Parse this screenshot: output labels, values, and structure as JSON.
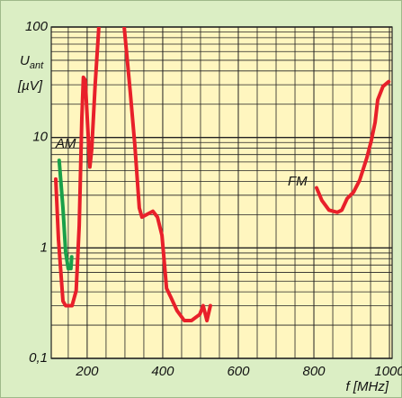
{
  "chart_data": {
    "type": "line",
    "ylabel": "U",
    "ylabel_sub": "ant",
    "yunit": "[µV]",
    "xlabel": "f [MHz]",
    "annotations": [
      "AM",
      "FM"
    ],
    "log_y": true,
    "grid": true,
    "xlim": [
      105,
      1007
    ],
    "ylim": [
      0.1,
      100
    ],
    "xticks": [
      200,
      400,
      600,
      800,
      1000
    ],
    "xminorticks": [
      150,
      250,
      300,
      350,
      450,
      500,
      550,
      650,
      700,
      750,
      850,
      900,
      950
    ],
    "yticks": [
      {
        "value": 0.1,
        "label": "0,1"
      },
      1,
      10,
      100
    ],
    "yminorticks": [
      0.2,
      0.3,
      0.4,
      0.5,
      0.6,
      0.7,
      0.8,
      0.9,
      2,
      3,
      4,
      5,
      6,
      7,
      8,
      9,
      20,
      30,
      40,
      50,
      60,
      70,
      80,
      90
    ],
    "series": [
      {
        "color": "#e8202a",
        "x": [
          117,
          124,
          136,
          143,
          160,
          171,
          179,
          186,
          190,
          195,
          207,
          212,
          221,
          231
        ],
        "values": [
          4.2,
          1.2,
          0.33,
          0.3,
          0.3,
          0.41,
          1.6,
          15,
          35,
          33,
          5.4,
          7.8,
          29,
          100
        ]
      },
      {
        "color": "#e8202a",
        "x": [
          298,
          314,
          326,
          338,
          345,
          357,
          374,
          386,
          398,
          410,
          421,
          438,
          457,
          476,
          498,
          507,
          517,
          526
        ],
        "values": [
          100,
          26,
          8.6,
          2.3,
          1.9,
          2.0,
          2.15,
          1.9,
          1.3,
          0.43,
          0.36,
          0.27,
          0.22,
          0.22,
          0.25,
          0.3,
          0.22,
          0.3
        ]
      },
      {
        "color": "#e8202a",
        "x": [
          807,
          821,
          840,
          862,
          874,
          888,
          905,
          921,
          940,
          952,
          962,
          969,
          983,
          998
        ],
        "values": [
          3.5,
          2.7,
          2.2,
          2.1,
          2.2,
          2.8,
          3.2,
          4.1,
          6.5,
          9.4,
          13.7,
          21.9,
          29,
          32
        ]
      },
      {
        "color": "#1aa04a",
        "x": [
          126,
          136,
          143,
          150,
          157,
          159
        ],
        "values": [
          6.2,
          2.3,
          0.91,
          0.65,
          0.65,
          0.83
        ]
      }
    ]
  }
}
